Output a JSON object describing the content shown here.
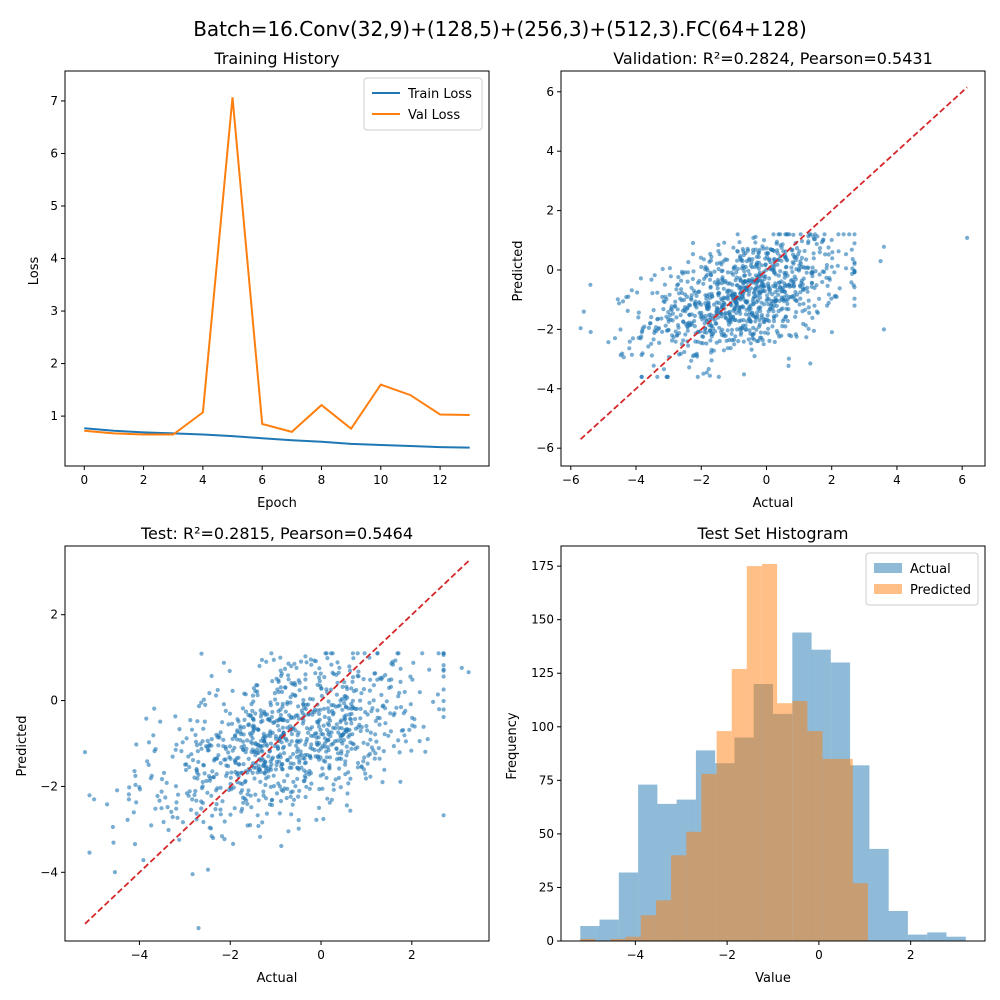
{
  "figure": {
    "suptitle": "Batch=16.Conv(32,9)+(128,5)+(256,3)+(512,3).FC(64+128)"
  },
  "chart_data": [
    {
      "id": "history",
      "type": "line",
      "title": "Training History",
      "xlabel": "Epoch",
      "ylabel": "Loss",
      "xlim": [
        -0.65,
        13.65
      ],
      "ylim": [
        0.05,
        7.57
      ],
      "xticks": [
        0,
        2,
        4,
        6,
        8,
        10,
        12
      ],
      "yticks": [
        1,
        2,
        3,
        4,
        5,
        6,
        7
      ],
      "legend": "top-right",
      "x": [
        0,
        1,
        2,
        3,
        4,
        5,
        6,
        7,
        8,
        9,
        10,
        11,
        12,
        13
      ],
      "series": [
        {
          "name": "Train Loss",
          "color": "#1f77b4",
          "values": [
            0.77,
            0.72,
            0.69,
            0.67,
            0.65,
            0.62,
            0.58,
            0.54,
            0.51,
            0.47,
            0.45,
            0.43,
            0.41,
            0.4
          ]
        },
        {
          "name": "Val Loss",
          "color": "#ff7f0e",
          "values": [
            0.72,
            0.67,
            0.65,
            0.65,
            1.07,
            7.07,
            0.85,
            0.7,
            1.21,
            0.76,
            1.6,
            1.4,
            1.03,
            1.02
          ]
        }
      ]
    },
    {
      "id": "validation",
      "type": "scatter",
      "title": "Validation: R²=0.2824, Pearson=0.5431",
      "xlabel": "Actual",
      "ylabel": "Predicted",
      "xlim": [
        -6.3,
        6.7
      ],
      "ylim": [
        -6.6,
        6.7
      ],
      "xticks": [
        -6,
        -4,
        -2,
        0,
        2,
        4,
        6
      ],
      "yticks": [
        -6,
        -4,
        -2,
        0,
        2,
        4,
        6
      ],
      "n_points": 1000,
      "x_mean": -0.7,
      "x_std": 1.5,
      "slope": 0.3,
      "intercept": -0.7,
      "noise": 0.95,
      "x_range": [
        -5.7,
        2.7
      ],
      "y_range": [
        -3.6,
        1.2
      ],
      "outliers": [
        [
          6.15,
          1.08
        ],
        [
          3.5,
          0.3
        ],
        [
          3.6,
          -2.0
        ],
        [
          3.6,
          0.78
        ],
        [
          2.7,
          -1.2
        ],
        [
          -5.6,
          -1.4
        ],
        [
          -5.4,
          -0.5
        ]
      ],
      "diagonal": [
        -5.7,
        6.15
      ],
      "point_color": "#1f77b4",
      "line_color": "#d62728"
    },
    {
      "id": "test",
      "type": "scatter",
      "title": "Test: R²=0.2815, Pearson=0.5464",
      "xlabel": "Actual",
      "ylabel": "Predicted",
      "xlim": [
        -5.64,
        3.7
      ],
      "ylim": [
        -5.6,
        3.6
      ],
      "xticks": [
        -4,
        -2,
        0,
        2
      ],
      "yticks": [
        -4,
        -2,
        0,
        2
      ],
      "n_points": 1000,
      "x_mean": -0.7,
      "x_std": 1.5,
      "slope": 0.32,
      "intercept": -0.7,
      "noise": 0.85,
      "x_range": [
        -5.1,
        2.7
      ],
      "y_range": [
        -4.1,
        1.1
      ],
      "outliers": [
        [
          -2.7,
          -5.3
        ],
        [
          3.25,
          0.66
        ],
        [
          3.1,
          0.76
        ],
        [
          2.6,
          -0.2
        ],
        [
          -5.2,
          -1.2
        ],
        [
          -5.0,
          -2.3
        ]
      ],
      "diagonal": [
        -5.2,
        3.25
      ],
      "point_color": "#1f77b4",
      "line_color": "#d62728"
    },
    {
      "id": "histogram",
      "type": "bar",
      "title": "Test Set Histogram",
      "xlabel": "Value",
      "ylabel": "Frequency",
      "xlim": [
        -5.62,
        3.62
      ],
      "ylim": [
        0,
        184.4
      ],
      "xticks": [
        -4,
        -2,
        0,
        2
      ],
      "yticks": [
        0,
        25,
        50,
        75,
        100,
        125,
        150,
        175
      ],
      "legend": "top-right",
      "series": [
        {
          "name": "Actual",
          "color": "#1f77b4",
          "alpha": 0.5,
          "bin_start": -5.2,
          "bin_width": 0.42,
          "counts": [
            7,
            10,
            32,
            73,
            64,
            66,
            89,
            83,
            95,
            120,
            106,
            144,
            136,
            130,
            82,
            43,
            14,
            3,
            4,
            2
          ]
        },
        {
          "name": "Predicted",
          "color": "#ff7f0e",
          "alpha": 0.5,
          "bin_start": -5.2,
          "bin_width": 0.33,
          "counts": [
            1,
            0,
            1,
            2,
            12,
            19,
            40,
            51,
            78,
            98,
            127,
            175,
            176,
            111,
            112,
            98,
            85,
            85,
            27
          ]
        }
      ]
    }
  ]
}
